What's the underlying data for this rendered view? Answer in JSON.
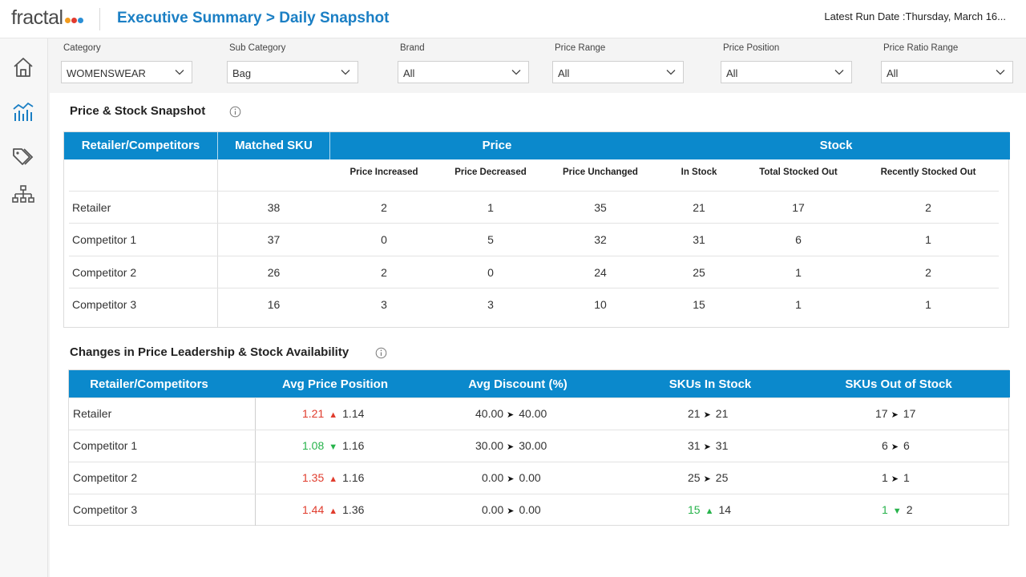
{
  "header": {
    "logo_text": "fractal",
    "logo_dots": [
      "#f29b1d",
      "#e23b2f",
      "#2a8fd6"
    ],
    "breadcrumb": "Executive Summary > Daily Snapshot",
    "run_date_label": "Latest Run Date :",
    "run_date_value": "Thursday, March 16..."
  },
  "sidebar": {
    "items": [
      {
        "icon": "home-icon"
      },
      {
        "icon": "chart-icon",
        "active": true
      },
      {
        "icon": "tags-icon"
      },
      {
        "icon": "hierarchy-icon"
      }
    ]
  },
  "filters": [
    {
      "label": "Category",
      "value": "WOMENSWEAR"
    },
    {
      "label": "Sub Category",
      "value": "Bag"
    },
    {
      "label": "Brand",
      "value": "All"
    },
    {
      "label": "Price Range",
      "value": "All"
    },
    {
      "label": "Price Position",
      "value": "All"
    },
    {
      "label": "Price Ratio Range",
      "value": "All"
    }
  ],
  "snapshot": {
    "title": "Price & Stock Snapshot",
    "headers": {
      "retailer": "Retailer/Competitors",
      "matched": "Matched SKU",
      "price": "Price",
      "stock": "Stock"
    },
    "subheaders": [
      "Price Increased",
      "Price Decreased",
      "Price Unchanged",
      "In Stock",
      "Total Stocked Out",
      "Recently Stocked Out"
    ],
    "rows": [
      {
        "name": "Retailer",
        "matched": "38",
        "inc": "2",
        "dec": "1",
        "unch": "35",
        "instock": "21",
        "total_out": "17",
        "recent_out": "2"
      },
      {
        "name": "Competitor 1",
        "matched": "37",
        "inc": "0",
        "dec": "5",
        "unch": "32",
        "instock": "31",
        "total_out": "6",
        "recent_out": "1"
      },
      {
        "name": "Competitor 2",
        "matched": "26",
        "inc": "2",
        "dec": "0",
        "unch": "24",
        "instock": "25",
        "total_out": "1",
        "recent_out": "2"
      },
      {
        "name": "Competitor 3",
        "matched": "16",
        "inc": "3",
        "dec": "3",
        "unch": "10",
        "instock": "15",
        "total_out": "1",
        "recent_out": "1"
      }
    ]
  },
  "changes": {
    "title": "Changes in Price Leadership & Stock Availability",
    "headers": [
      "Retailer/Competitors",
      "Avg Price Position",
      "Avg Discount (%)",
      "SKUs In Stock",
      "SKUs Out of Stock"
    ],
    "rows": [
      {
        "name": "Retailer",
        "price_pos": {
          "from": "1.21",
          "to": "1.14",
          "dir": "up"
        },
        "discount": {
          "from": "40.00",
          "to": "40.00",
          "dir": "same"
        },
        "in_stock": {
          "from": "21",
          "to": "21",
          "dir": "same"
        },
        "out_stock": {
          "from": "17",
          "to": "17",
          "dir": "same"
        }
      },
      {
        "name": "Competitor 1",
        "price_pos": {
          "from": "1.08",
          "to": "1.16",
          "dir": "down"
        },
        "discount": {
          "from": "30.00",
          "to": "30.00",
          "dir": "same"
        },
        "in_stock": {
          "from": "31",
          "to": "31",
          "dir": "same"
        },
        "out_stock": {
          "from": "6",
          "to": "6",
          "dir": "same"
        }
      },
      {
        "name": "Competitor 2",
        "price_pos": {
          "from": "1.35",
          "to": "1.16",
          "dir": "up"
        },
        "discount": {
          "from": "0.00",
          "to": "0.00",
          "dir": "same"
        },
        "in_stock": {
          "from": "25",
          "to": "25",
          "dir": "same"
        },
        "out_stock": {
          "from": "1",
          "to": "1",
          "dir": "same"
        }
      },
      {
        "name": "Competitor 3",
        "price_pos": {
          "from": "1.44",
          "to": "1.36",
          "dir": "up"
        },
        "discount": {
          "from": "0.00",
          "to": "0.00",
          "dir": "same"
        },
        "in_stock": {
          "from": "15",
          "to": "14",
          "dir": "up_green"
        },
        "out_stock": {
          "from": "1",
          "to": "2",
          "dir": "down"
        }
      }
    ]
  },
  "colors": {
    "accent": "#0b89cc",
    "brand_blue": "#1b7fc4",
    "up_red": "#e03c2d",
    "down_green": "#27b34b"
  }
}
